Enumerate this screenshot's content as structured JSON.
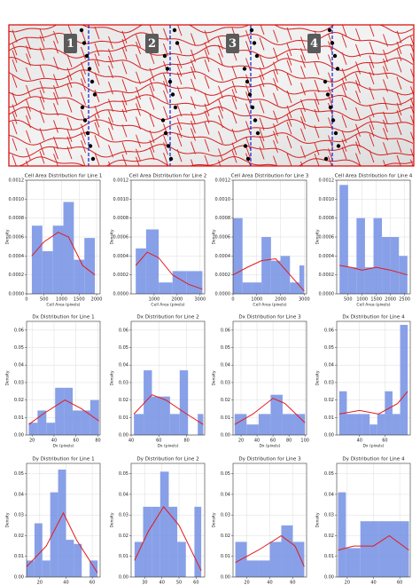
{
  "panel": {
    "labels": [
      "1",
      "2",
      "3",
      "4"
    ]
  },
  "chart_data": [
    {
      "type": "histogram",
      "title": "Cell Area Distribution for Line 1",
      "xlabel": "Cell Area (pixels)",
      "ylabel": "Density",
      "color": "#7b96e6",
      "grid": true,
      "bins": [
        150,
        450,
        750,
        1050,
        1350,
        1650,
        1950
      ],
      "values": [
        0.00072,
        0.00045,
        0.00072,
        0.00097,
        0.00036,
        0.00059
      ],
      "kde": {
        "color": "#e31a1c",
        "x": [
          150,
          500,
          900,
          1200,
          1600,
          1950
        ],
        "values": [
          0.0004,
          0.00055,
          0.00065,
          0.0006,
          0.0003,
          0.0002
        ]
      },
      "xlim": [
        0,
        2100
      ],
      "xticks": [
        0,
        500,
        1000,
        1500,
        2000
      ],
      "ylim": [
        0,
        0.0012
      ],
      "yticks": [
        {
          "value": 0,
          "label": "0.0000"
        },
        0.0002,
        0.0004,
        0.0006,
        0.0008,
        {
          "value": 0.001,
          "label": "0.0010"
        },
        0.0012
      ]
    },
    {
      "type": "histogram",
      "title": "Cell Area Distribution for Line 2",
      "xlabel": "Cell Area (pixels)",
      "ylabel": "Density",
      "color": "#7b96e6",
      "grid": true,
      "bins": [
        200,
        650,
        1200,
        1800,
        2400,
        3100
      ],
      "values": [
        0.00048,
        0.00068,
        0.00012,
        0.00024,
        0.00024
      ],
      "kde": {
        "color": "#e31a1c",
        "x": [
          200,
          700,
          1200,
          1800,
          2500,
          3100
        ],
        "values": [
          0.0003,
          0.00044,
          0.00038,
          0.0002,
          0.0001,
          5e-05
        ]
      },
      "xlim": [
        0,
        3200
      ],
      "xticks": [
        1000,
        2000,
        3000
      ],
      "ylim": [
        0,
        0.0012
      ],
      "yticks": [
        {
          "value": 0,
          "label": "0.0000"
        },
        0.0002,
        0.0004,
        0.0006,
        0.0008,
        {
          "value": 0.001,
          "label": "0.0010"
        },
        0.0012
      ]
    },
    {
      "type": "histogram",
      "title": "Cell Area Distribution for Line 3",
      "xlabel": "Cell Area (pixels)",
      "ylabel": "Density",
      "color": "#7b96e6",
      "grid": true,
      "bins": [
        0,
        400,
        800,
        1200,
        1600,
        2000,
        2400,
        2800,
        3000
      ],
      "values": [
        0.0008,
        0.00012,
        0.00012,
        0.0006,
        0.00035,
        0.0004,
        0.00012,
        0.0003
      ],
      "kde": {
        "color": "#e31a1c",
        "x": [
          0,
          600,
          1200,
          1800,
          2400,
          3000
        ],
        "values": [
          0.0002,
          0.00028,
          0.00035,
          0.00037,
          0.0002,
          3e-05
        ]
      },
      "xlim": [
        0,
        3100
      ],
      "xticks": [
        0,
        1000,
        2000,
        3000
      ],
      "ylim": [
        0,
        0.0012
      ],
      "yticks": [
        {
          "value": 0,
          "label": "0.0000"
        },
        0.0002,
        0.0004,
        0.0006,
        0.0008,
        {
          "value": 0.001,
          "label": "0.0010"
        },
        0.0012
      ]
    },
    {
      "type": "histogram",
      "title": "Cell Area Distribution for Line 4",
      "xlabel": "Cell Area (pixels)",
      "ylabel": "Density",
      "color": "#7b96e6",
      "grid": true,
      "bins": [
        200,
        500,
        800,
        1100,
        1400,
        1700,
        2000,
        2300,
        2600
      ],
      "values": [
        0.00115,
        0.00028,
        0.0008,
        0.00028,
        0.0008,
        0.0006,
        0.0006,
        0.0004
      ],
      "kde": {
        "color": "#e31a1c",
        "x": [
          200,
          600,
          1000,
          1500,
          2000,
          2600
        ],
        "values": [
          0.0003,
          0.00028,
          0.00025,
          0.00028,
          0.00025,
          0.0002
        ]
      },
      "xlim": [
        100,
        2700
      ],
      "xticks": [
        500,
        1000,
        1500,
        2000,
        2500
      ],
      "ylim": [
        0,
        0.0012
      ],
      "yticks": [
        {
          "value": 0,
          "label": "0.0000"
        },
        0.0002,
        0.0004,
        0.0006,
        0.0008,
        {
          "value": 0.001,
          "label": "0.0010"
        },
        0.0012
      ]
    },
    {
      "type": "histogram",
      "title": "Dx Distribution for Line 1",
      "xlabel": "Dx (pixels)",
      "ylabel": "Density",
      "color": "#7b96e6",
      "grid": true,
      "bins": [
        17,
        25,
        33,
        41,
        49,
        57,
        65,
        73,
        81
      ],
      "values": [
        0.007,
        0.014,
        0.007,
        0.027,
        0.027,
        0.014,
        0.014,
        0.02
      ],
      "kde": {
        "color": "#e31a1c",
        "x": [
          17,
          30,
          50,
          65,
          81
        ],
        "values": [
          0.006,
          0.012,
          0.02,
          0.015,
          0.008
        ]
      },
      "xlim": [
        15,
        82
      ],
      "xticks": [
        20,
        40,
        60,
        80
      ],
      "ylim": [
        0,
        0.065
      ],
      "yticks": [
        {
          "value": 0,
          "label": "0.00"
        },
        0.01,
        0.02,
        0.03,
        0.04,
        0.05,
        0.06
      ]
    },
    {
      "type": "histogram",
      "title": "Dx Distribution for Line 2",
      "xlabel": "Dx (pixels)",
      "ylabel": "Density",
      "color": "#7b96e6",
      "grid": true,
      "bins": [
        42,
        49,
        55,
        62,
        68,
        75,
        81,
        88,
        92
      ],
      "values": [
        0.012,
        0.037,
        0.022,
        0.022,
        0.012,
        0.037,
        0,
        0.012
      ],
      "kde": {
        "color": "#e31a1c",
        "x": [
          42,
          55,
          65,
          80,
          92
        ],
        "values": [
          0.012,
          0.023,
          0.02,
          0.012,
          0.006
        ]
      },
      "xlim": [
        40,
        93
      ],
      "xticks": [
        40,
        60,
        80
      ],
      "ylim": [
        0,
        0.065
      ],
      "yticks": [
        {
          "value": 0,
          "label": "0.00"
        },
        0.01,
        0.02,
        0.03,
        0.04,
        0.05,
        0.06
      ]
    },
    {
      "type": "histogram",
      "title": "Dx Distribution for Line 3",
      "xlabel": "Dx (pixels)",
      "ylabel": "Density",
      "color": "#7b96e6",
      "grid": true,
      "bins": [
        12,
        27,
        42,
        57,
        72,
        87,
        100
      ],
      "values": [
        0.012,
        0.006,
        0.012,
        0.023,
        0.012,
        0.012
      ],
      "kde": {
        "color": "#e31a1c",
        "x": [
          12,
          35,
          60,
          75,
          100
        ],
        "values": [
          0.006,
          0.012,
          0.021,
          0.018,
          0.007
        ]
      },
      "xlim": [
        10,
        102
      ],
      "xticks": [
        20,
        40,
        60,
        80,
        100
      ],
      "ylim": [
        0,
        0.065
      ],
      "yticks": [
        {
          "value": 0,
          "label": "0.00"
        },
        0.01,
        0.02,
        0.03,
        0.04,
        0.05,
        0.06
      ]
    },
    {
      "type": "histogram",
      "title": "Dx Distribution for Line 4",
      "xlabel": "Dx (pixels)",
      "ylabel": "Density",
      "color": "#7b96e6",
      "grid": true,
      "bins": [
        24,
        30,
        36,
        42,
        48,
        54,
        60,
        66,
        72,
        78
      ],
      "values": [
        0.025,
        0.012,
        0.012,
        0.012,
        0.006,
        0.012,
        0.025,
        0.012,
        0.063
      ],
      "kde": {
        "color": "#e31a1c",
        "x": [
          24,
          40,
          55,
          70,
          78
        ],
        "values": [
          0.012,
          0.014,
          0.012,
          0.018,
          0.025
        ]
      },
      "xlim": [
        22,
        80
      ],
      "xticks": [
        40,
        60
      ],
      "ylim": [
        0,
        0.065
      ],
      "yticks": [
        {
          "value": 0,
          "label": "0.00"
        },
        0.01,
        0.02,
        0.03,
        0.04,
        0.05,
        0.06
      ]
    },
    {
      "type": "histogram",
      "title": "Dy Distribution for Line 1",
      "xlabel": "Dy (pixels)",
      "ylabel": "Density",
      "color": "#7b96e6",
      "grid": true,
      "bins": [
        10,
        16,
        22,
        28,
        34,
        40,
        46,
        52,
        58,
        64
      ],
      "values": [
        0.008,
        0.026,
        0.008,
        0.041,
        0.052,
        0.018,
        0.016,
        0,
        0.008
      ],
      "kde": {
        "color": "#e31a1c",
        "x": [
          10,
          25,
          38,
          48,
          64
        ],
        "values": [
          0.005,
          0.015,
          0.031,
          0.018,
          0.002
        ]
      },
      "xlim": [
        10,
        66
      ],
      "xticks": [
        20,
        40,
        60
      ],
      "ylim": [
        0,
        0.055
      ],
      "yticks": [
        {
          "value": 0,
          "label": "0.00"
        },
        0.01,
        0.02,
        0.03,
        0.04,
        0.05
      ]
    },
    {
      "type": "histogram",
      "title": "Dy Distribution for Line 2",
      "xlabel": "Dy (pixels)",
      "ylabel": "Density",
      "color": "#7b96e6",
      "grid": true,
      "bins": [
        24,
        29,
        34,
        39,
        44,
        49,
        54,
        59,
        63
      ],
      "values": [
        0.017,
        0.034,
        0.034,
        0.051,
        0.034,
        0.017,
        0,
        0.034
      ],
      "kde": {
        "color": "#e31a1c",
        "x": [
          24,
          32,
          41,
          50,
          63
        ],
        "values": [
          0.008,
          0.022,
          0.034,
          0.025,
          0.003
        ]
      },
      "xlim": [
        22,
        65
      ],
      "xticks": [
        30,
        40,
        50,
        60
      ],
      "ylim": [
        0,
        0.055
      ],
      "yticks": [
        {
          "value": 0,
          "label": "0.00"
        },
        0.01,
        0.02,
        0.03,
        0.04,
        0.05
      ]
    },
    {
      "type": "histogram",
      "title": "Dy Distribution for Line 3",
      "xlabel": "Dy (pixels)",
      "ylabel": "Density",
      "color": "#7b96e6",
      "grid": true,
      "bins": [
        10,
        20,
        30,
        40,
        50,
        60,
        70
      ],
      "values": [
        0.017,
        0.008,
        0.008,
        0.017,
        0.025,
        0.017
      ],
      "kde": {
        "color": "#e31a1c",
        "x": [
          10,
          30,
          50,
          62,
          70
        ],
        "values": [
          0.007,
          0.013,
          0.02,
          0.015,
          0.005
        ]
      },
      "xlim": [
        8,
        72
      ],
      "xticks": [
        20,
        40,
        60
      ],
      "ylim": [
        0,
        0.055
      ],
      "yticks": [
        {
          "value": 0,
          "label": "0.00"
        },
        0.01,
        0.02,
        0.03,
        0.04,
        0.05
      ]
    },
    {
      "type": "histogram",
      "title": "Dy Distribution for Line 4",
      "xlabel": "Dy (pixels)",
      "ylabel": "Density",
      "color": "#7b96e6",
      "grid": true,
      "bins": [
        13,
        19,
        30,
        44,
        67
      ],
      "values": [
        0.041,
        0.014,
        0.027,
        0.027
      ],
      "kde": {
        "color": "#e31a1c",
        "x": [
          13,
          25,
          40,
          52,
          67
        ],
        "values": [
          0.013,
          0.015,
          0.015,
          0.02,
          0.013
        ]
      },
      "xlim": [
        12,
        68
      ],
      "xticks": [
        20,
        40,
        60
      ],
      "ylim": [
        0,
        0.055
      ],
      "yticks": [
        {
          "value": 0,
          "label": "0.00"
        },
        0.01,
        0.02,
        0.03,
        0.04,
        0.05
      ]
    }
  ]
}
